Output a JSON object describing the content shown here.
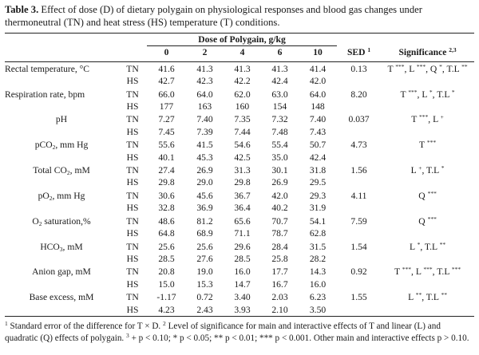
{
  "caption": {
    "label": "Table 3.",
    "text": "Effect of dose (D) of dietary polygain on physiological responses and blood gas changes under thermoneutral (TN) and heat stress (HS) temperature (T) conditions."
  },
  "header": {
    "dose_title": "Dose of Polygain, g/kg",
    "doses": [
      "0",
      "2",
      "4",
      "6",
      "10"
    ],
    "sed_label": "SED",
    "sed_sup": "1",
    "sig_label": "Significance",
    "sig_sup": "2,3"
  },
  "rows": [
    {
      "label": "Rectal temperature, °C",
      "tn": {
        "cond": "TN",
        "values": [
          "41.6",
          "41.3",
          "41.3",
          "41.3",
          "41.4"
        ]
      },
      "hs": {
        "cond": "HS",
        "values": [
          "42.7",
          "42.3",
          "42.2",
          "42.4",
          "42.0"
        ]
      },
      "sed": "0.13",
      "sig": "T ***, L ***, Q *, T.L **"
    },
    {
      "label": "Respiration rate, bpm",
      "tn": {
        "cond": "TN",
        "values": [
          "66.0",
          "64.0",
          "62.0",
          "63.0",
          "64.0"
        ]
      },
      "hs": {
        "cond": "HS",
        "values": [
          "177",
          "163",
          "160",
          "154",
          "148"
        ]
      },
      "sed": "8.20",
      "sig": "T ***, L *, T.L *"
    },
    {
      "label": "pH",
      "tn": {
        "cond": "TN",
        "values": [
          "7.27",
          "7.40",
          "7.35",
          "7.32",
          "7.40"
        ]
      },
      "hs": {
        "cond": "HS",
        "values": [
          "7.45",
          "7.39",
          "7.44",
          "7.48",
          "7.43"
        ]
      },
      "sed": "0.037",
      "sig": "T ***, L +"
    },
    {
      "label": "pCO2, mm Hg",
      "tn": {
        "cond": "TN",
        "values": [
          "55.6",
          "41.5",
          "54.6",
          "55.4",
          "50.7"
        ]
      },
      "hs": {
        "cond": "HS",
        "values": [
          "40.1",
          "45.3",
          "42.5",
          "35.0",
          "42.4"
        ]
      },
      "sed": "4.73",
      "sig": "T ***"
    },
    {
      "label": "Total CO2, mM",
      "tn": {
        "cond": "TN",
        "values": [
          "27.4",
          "26.9",
          "31.3",
          "30.1",
          "31.8"
        ]
      },
      "hs": {
        "cond": "HS",
        "values": [
          "29.8",
          "29.0",
          "29.8",
          "26.9",
          "29.5"
        ]
      },
      "sed": "1.56",
      "sig": "L +, T.L *"
    },
    {
      "label": "pO2, mm Hg",
      "tn": {
        "cond": "TN",
        "values": [
          "30.6",
          "45.6",
          "36.7",
          "42.0",
          "29.3"
        ]
      },
      "hs": {
        "cond": "HS",
        "values": [
          "32.8",
          "36.9",
          "36.4",
          "40.2",
          "31.9"
        ]
      },
      "sed": "4.11",
      "sig": "Q ***"
    },
    {
      "label": "O2 saturation,%",
      "tn": {
        "cond": "TN",
        "values": [
          "48.6",
          "81.2",
          "65.6",
          "70.7",
          "54.1"
        ]
      },
      "hs": {
        "cond": "HS",
        "values": [
          "64.8",
          "68.9",
          "71.1",
          "78.7",
          "62.8"
        ]
      },
      "sed": "7.59",
      "sig": "Q ***"
    },
    {
      "label": "HCO3, mM",
      "tn": {
        "cond": "TN",
        "values": [
          "25.6",
          "25.6",
          "29.6",
          "28.4",
          "31.5"
        ]
      },
      "hs": {
        "cond": "HS",
        "values": [
          "28.5",
          "27.6",
          "28.5",
          "25.8",
          "28.2"
        ]
      },
      "sed": "1.54",
      "sig": "L *, T.L **"
    },
    {
      "label": "Anion gap, mM",
      "tn": {
        "cond": "TN",
        "values": [
          "20.8",
          "19.0",
          "16.0",
          "17.7",
          "14.3"
        ]
      },
      "hs": {
        "cond": "HS",
        "values": [
          "15.0",
          "15.3",
          "14.7",
          "16.7",
          "16.0"
        ]
      },
      "sed": "0.92",
      "sig": "T ***, L ***, T.L ***"
    },
    {
      "label": "Base excess, mM",
      "tn": {
        "cond": "TN",
        "values": [
          "-1.17",
          "0.72",
          "3.40",
          "2.03",
          "6.23"
        ]
      },
      "hs": {
        "cond": "HS",
        "values": [
          "4.23",
          "2.43",
          "3.93",
          "2.10",
          "3.50"
        ]
      },
      "sed": "1.55",
      "sig": "L **, T.L **"
    }
  ],
  "footnotes": {
    "n1_mark": "1",
    "n1_text": "Standard error of the difference for T × D.",
    "n2_mark": "2",
    "n2_text": "Level of significance for main and interactive effects of T and linear (L) and quadratic (Q) effects of polygain.",
    "n3_mark": "3",
    "n3_text": "+ p < 0.10; * p < 0.05; ** p < 0.01; *** p < 0.001. Other main and interactive effects p > 0.10."
  }
}
